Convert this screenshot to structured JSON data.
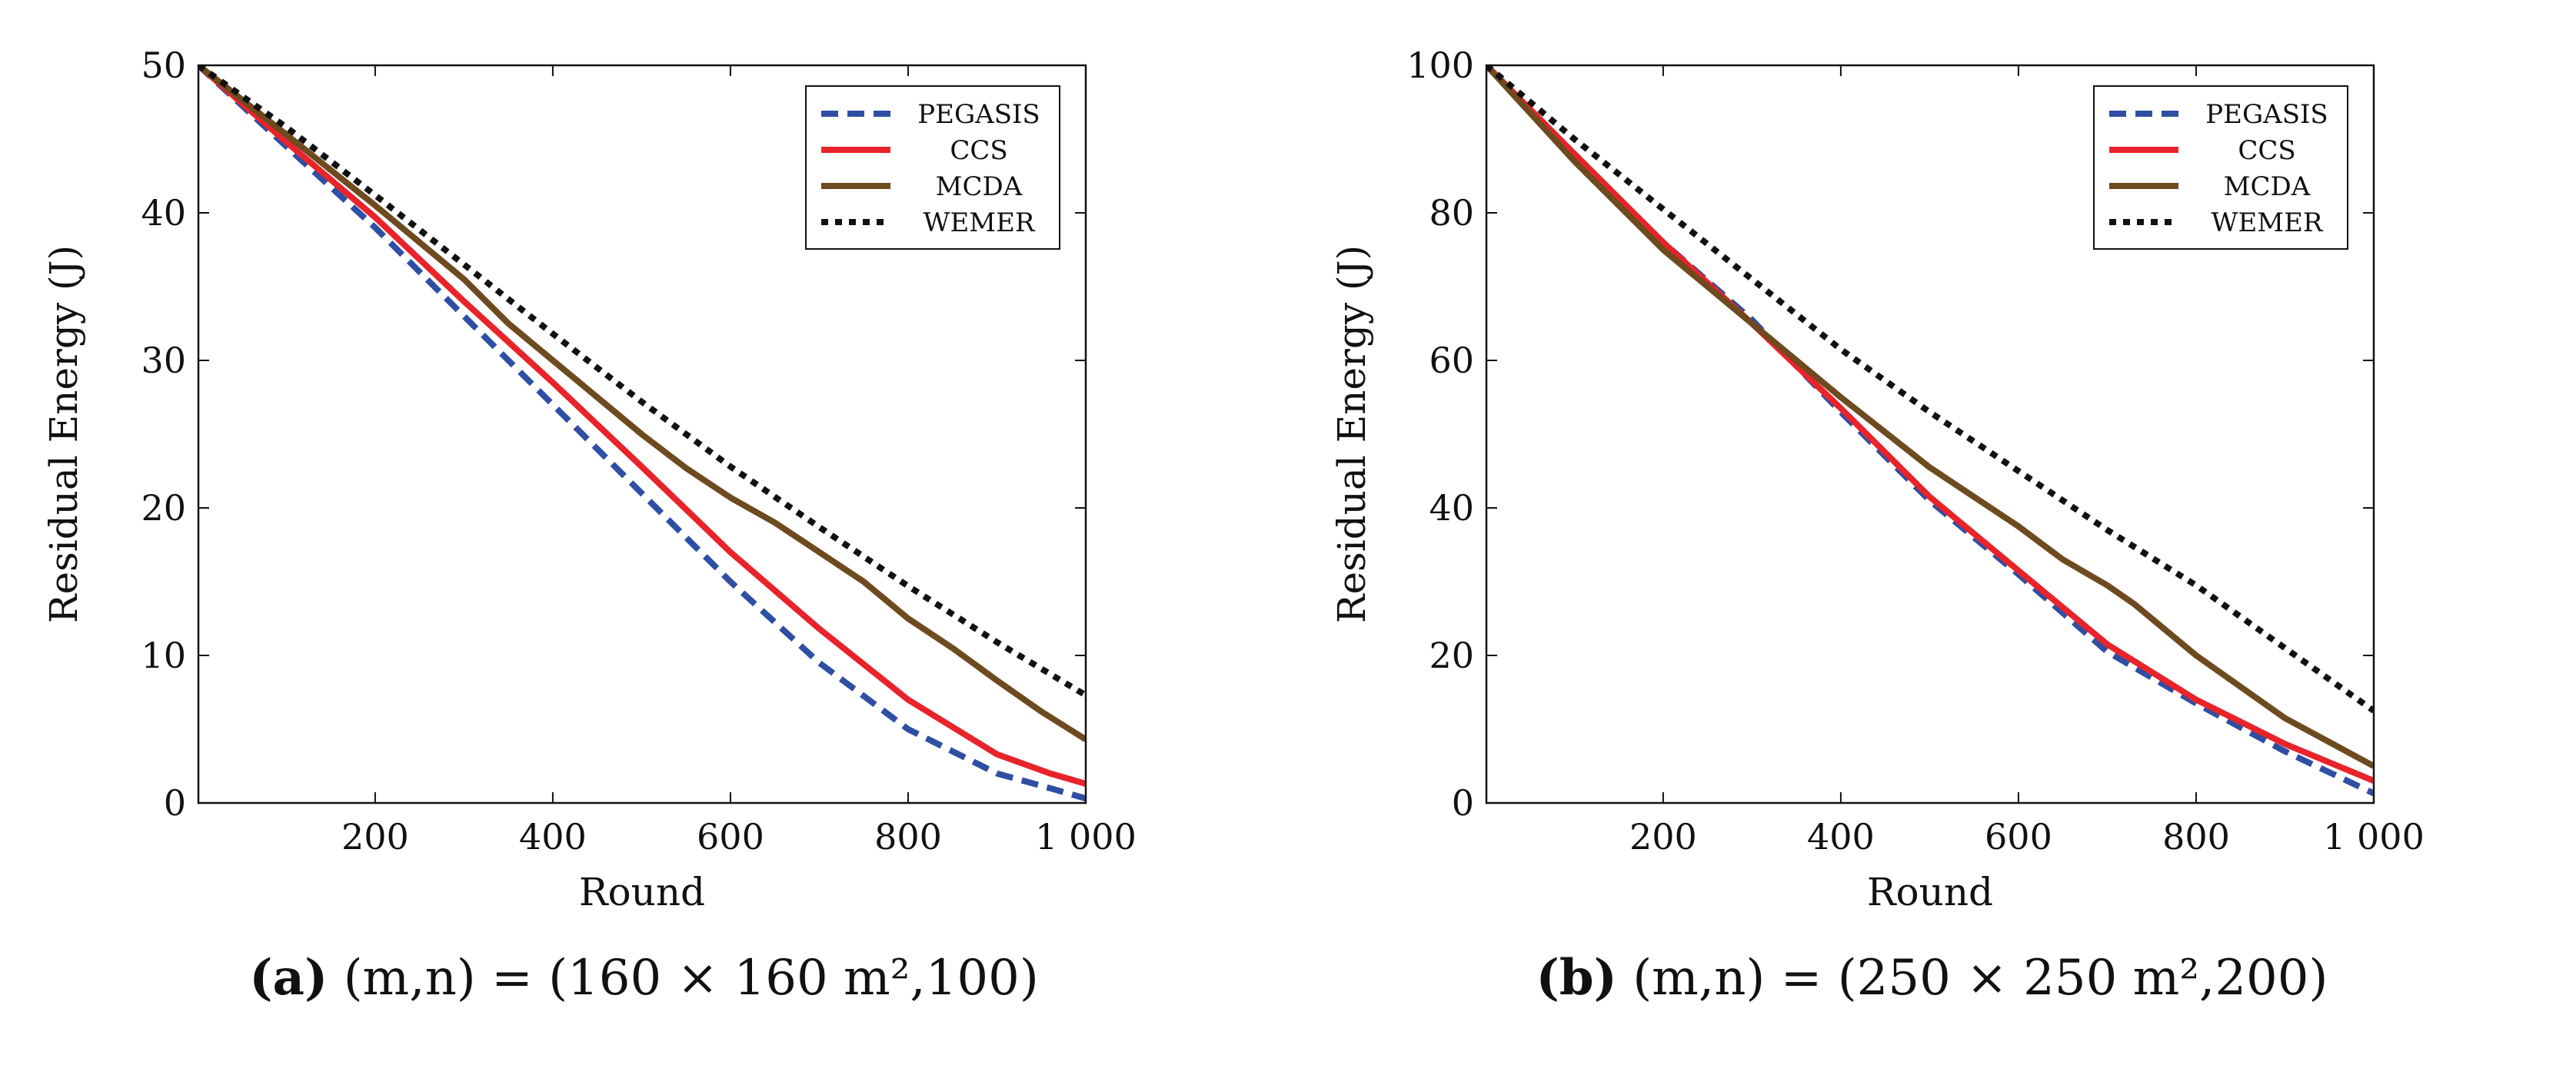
{
  "chart_data": [
    {
      "id": "a",
      "type": "line",
      "caption_tag": "(a)",
      "caption_text": "(m,n) = (160 × 160 m²,100)",
      "xlabel": "Round",
      "ylabel": "Residual Energy (J)",
      "xlim": [
        1,
        1000
      ],
      "ylim": [
        0,
        50
      ],
      "xticks": [
        200,
        400,
        600,
        800,
        1000
      ],
      "xtick_labels": [
        "200",
        "400",
        "600",
        "800",
        "1 000"
      ],
      "yticks": [
        0,
        10,
        20,
        30,
        40,
        50
      ],
      "ytick_labels": [
        "0",
        "10",
        "20",
        "30",
        "40",
        "50"
      ],
      "legend_position": "top-right",
      "series": [
        {
          "name": "PEGASIS",
          "color": "#2e4fa3",
          "style": "dashed",
          "x": [
            1,
            100,
            200,
            300,
            400,
            500,
            600,
            700,
            800,
            900,
            960,
            1000
          ],
          "y": [
            50,
            44.5,
            39,
            33,
            27,
            21,
            15,
            9.5,
            5,
            2,
            1,
            0.3
          ]
        },
        {
          "name": "CCS",
          "color": "#e8232a",
          "style": "solid",
          "x": [
            1,
            100,
            200,
            300,
            400,
            500,
            600,
            700,
            800,
            900,
            960,
            1000
          ],
          "y": [
            50,
            44.8,
            39.7,
            34,
            28.5,
            22.8,
            17,
            11.8,
            7,
            3.3,
            2,
            1.3
          ]
        },
        {
          "name": "MCDA",
          "color": "#6e4a1f",
          "style": "solid",
          "x": [
            1,
            100,
            200,
            300,
            350,
            400,
            450,
            500,
            550,
            600,
            650,
            700,
            750,
            800,
            850,
            900,
            950,
            1000
          ],
          "y": [
            50,
            45.3,
            40.5,
            35.5,
            32.5,
            30,
            27.5,
            25,
            22.7,
            20.7,
            19,
            17,
            15,
            12.5,
            10.5,
            8.3,
            6.2,
            4.3
          ]
        },
        {
          "name": "WEMER",
          "color": "#111111",
          "style": "dotted",
          "x": [
            1,
            100,
            200,
            300,
            400,
            500,
            600,
            700,
            800,
            900,
            1000
          ],
          "y": [
            50,
            45.8,
            41.2,
            36.5,
            31.8,
            27.2,
            22.8,
            18.7,
            14.7,
            10.9,
            7.3
          ]
        }
      ]
    },
    {
      "id": "b",
      "type": "line",
      "caption_tag": "(b)",
      "caption_text": "(m,n) = (250 × 250 m²,200)",
      "xlabel": "Round",
      "ylabel": "Residual Energy (J)",
      "xlim": [
        1,
        1000
      ],
      "ylim": [
        0,
        100
      ],
      "xticks": [
        200,
        400,
        600,
        800,
        1000
      ],
      "xtick_labels": [
        "200",
        "400",
        "600",
        "800",
        "1 000"
      ],
      "yticks": [
        0,
        20,
        40,
        60,
        80,
        100
      ],
      "ytick_labels": [
        "0",
        "20",
        "40",
        "60",
        "80",
        "100"
      ],
      "legend_position": "top-right",
      "series": [
        {
          "name": "PEGASIS",
          "color": "#2e4fa3",
          "style": "dashed",
          "x": [
            1,
            100,
            200,
            300,
            400,
            500,
            600,
            700,
            800,
            900,
            1000
          ],
          "y": [
            100,
            87.5,
            76,
            65.5,
            53,
            41,
            31,
            20.5,
            13.5,
            7,
            1.3
          ]
        },
        {
          "name": "CCS",
          "color": "#e8232a",
          "style": "solid",
          "x": [
            1,
            100,
            200,
            300,
            400,
            500,
            600,
            700,
            800,
            900,
            1000
          ],
          "y": [
            100,
            88,
            76,
            65,
            53.5,
            41.5,
            31.5,
            21.5,
            14,
            8,
            3
          ]
        },
        {
          "name": "MCDA",
          "color": "#6e4a1f",
          "style": "solid",
          "x": [
            1,
            100,
            200,
            300,
            400,
            500,
            600,
            650,
            700,
            730,
            800,
            900,
            1000
          ],
          "y": [
            100,
            87,
            75,
            65,
            55,
            45.5,
            37.5,
            33,
            29.5,
            27,
            20,
            11.5,
            5
          ]
        },
        {
          "name": "WEMER",
          "color": "#111111",
          "style": "dotted",
          "x": [
            1,
            100,
            200,
            300,
            400,
            500,
            600,
            700,
            800,
            900,
            1000
          ],
          "y": [
            100,
            90,
            80.5,
            71,
            61.5,
            53,
            45,
            37,
            29.5,
            21,
            12.5
          ]
        }
      ]
    }
  ]
}
